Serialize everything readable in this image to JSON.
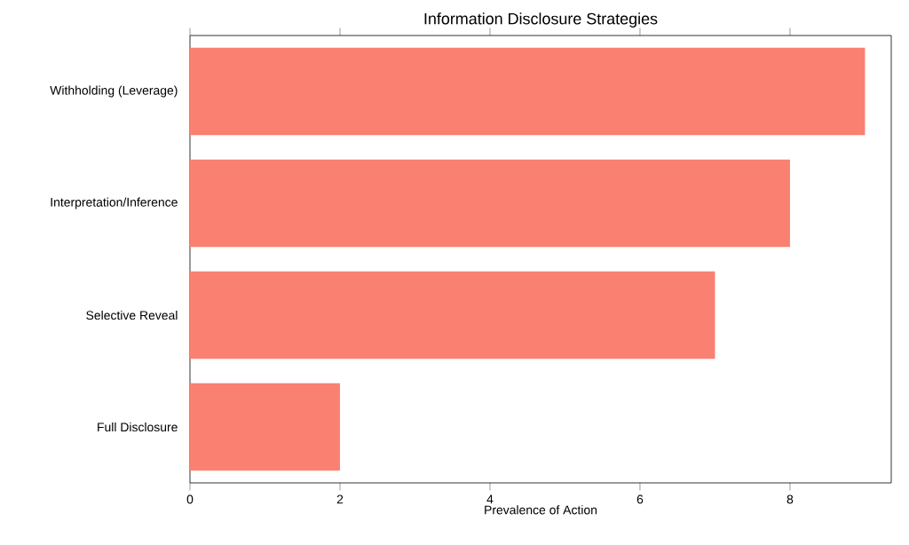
{
  "chart_data": {
    "type": "bar",
    "orientation": "horizontal",
    "title": "Information Disclosure Strategies",
    "xlabel": "Prevalence of Action",
    "categories": [
      "Withholding (Leverage)",
      "Interpretation/Inference",
      "Selective Reveal",
      "Full Disclosure"
    ],
    "values": [
      9,
      8,
      7,
      2
    ],
    "color": "#fa8072",
    "xlim": [
      0,
      9.35
    ],
    "xticks": [
      0,
      2,
      4,
      6,
      8
    ],
    "grid": false
  }
}
